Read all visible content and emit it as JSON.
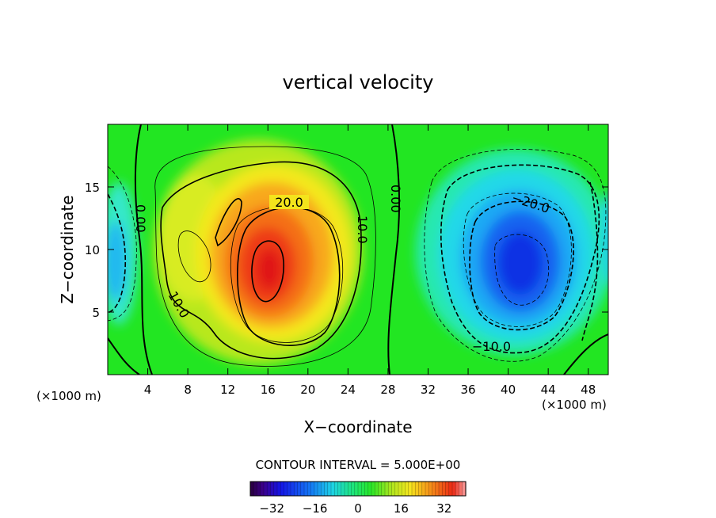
{
  "chart_data": {
    "type": "heatmap",
    "title": "vertical velocity",
    "xlabel": "X−coordinate",
    "ylabel": "Z−coordinate",
    "x_unit": "(×1000 m)",
    "x_unit_right": "(×1000 m)",
    "xlim": [
      0,
      50
    ],
    "ylim": [
      0,
      20
    ],
    "xticks": [
      4,
      8,
      12,
      16,
      20,
      24,
      28,
      32,
      36,
      40,
      44,
      48
    ],
    "yticks": [
      5,
      10,
      15
    ],
    "contour_interval_text": "CONTOUR INTERVAL = 5.000E+00",
    "contour_labels": [
      "20.0",
      "10.0",
      "10.0",
      "0.00",
      "0.00",
      "−20.0",
      "−10.0"
    ],
    "colorbar": {
      "range": [
        -40,
        40
      ],
      "ticks": [
        -32,
        -16,
        0,
        16,
        32
      ],
      "tick_labels": [
        "−32",
        "−16",
        "0",
        "16",
        "32"
      ]
    },
    "features": [
      {
        "kind": "updraft max",
        "x": 16.2,
        "z": 8.5,
        "value": 35
      },
      {
        "kind": "downdraft min",
        "x": 41.5,
        "z": 8.5,
        "value": -32
      },
      {
        "kind": "secondary max",
        "x": 8.5,
        "z": 10,
        "value": 10
      },
      {
        "kind": "edge min",
        "x": 1.0,
        "z": 8.5,
        "value": -14
      }
    ],
    "grid": false
  }
}
